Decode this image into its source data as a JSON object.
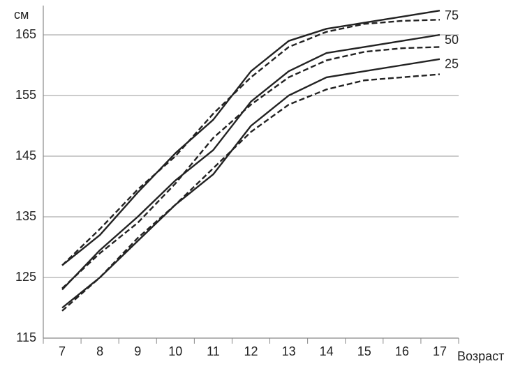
{
  "chart_data": {
    "type": "line",
    "ylabel": "см",
    "xlabel": "Возраст",
    "categories": [
      "7",
      "8",
      "9",
      "10",
      "11",
      "12",
      "13",
      "14",
      "15",
      "16",
      "17"
    ],
    "series": [
      {
        "name": "75",
        "color": "#222222",
        "dash": false,
        "values": [
          127,
          132,
          139,
          145.5,
          151,
          159,
          164,
          166,
          167,
          168,
          169
        ]
      },
      {
        "color": "#222222",
        "dash": true,
        "values": [
          127,
          133,
          139.5,
          145,
          152,
          158,
          163,
          165.5,
          166.8,
          167.3,
          167.5
        ]
      },
      {
        "name": "50",
        "color": "#222222",
        "dash": false,
        "values": [
          123,
          129.5,
          135,
          141,
          146,
          154,
          159,
          162,
          163,
          164,
          165
        ]
      },
      {
        "color": "#222222",
        "dash": true,
        "values": [
          123.2,
          129,
          134,
          140.5,
          148,
          153.5,
          158,
          160.8,
          162.2,
          162.8,
          163
        ]
      },
      {
        "name": "25",
        "color": "#222222",
        "dash": false,
        "values": [
          120,
          125,
          131,
          137,
          142,
          150,
          155,
          158,
          159,
          160,
          161
        ]
      },
      {
        "color": "#222222",
        "dash": true,
        "values": [
          119.5,
          125,
          131.5,
          137,
          143,
          149,
          153.5,
          156,
          157.5,
          158,
          158.5
        ]
      }
    ],
    "ylim": [
      115,
      170
    ],
    "yticks": [
      115,
      125,
      135,
      145,
      155,
      165
    ],
    "grid": true
  }
}
